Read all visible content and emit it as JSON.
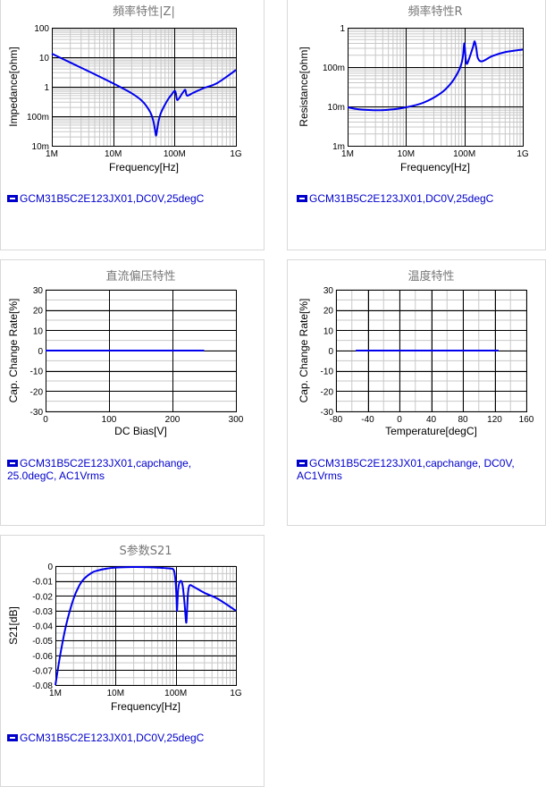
{
  "chart_data": [
    {
      "id": "impedance",
      "type": "line",
      "title": "頻率特性|Z|",
      "xlabel": "Frequency[Hz]",
      "ylabel": "Impedance[ohm]",
      "xscale": "log",
      "yscale": "log",
      "xlim": [
        1000000,
        1000000000
      ],
      "ylim": [
        0.01,
        100
      ],
      "xticks": [
        {
          "v": 1000000,
          "label": "1M"
        },
        {
          "v": 10000000,
          "label": "10M"
        },
        {
          "v": 100000000,
          "label": "100M"
        },
        {
          "v": 1000000000,
          "label": "1G"
        }
      ],
      "yticks": [
        {
          "v": 0.01,
          "label": "10m"
        },
        {
          "v": 0.1,
          "label": "100m"
        },
        {
          "v": 1,
          "label": "1"
        },
        {
          "v": 10,
          "label": "10"
        },
        {
          "v": 100,
          "label": "100"
        }
      ],
      "grid": true,
      "series": [
        {
          "name": "GCM31B5C2E123JX01,DC0V,25degC",
          "color": "#0000ee",
          "x": [
            1000000,
            2000000,
            5000000,
            10000000,
            20000000,
            30000000,
            40000000,
            45000000,
            48000000,
            50000000,
            52000000,
            55000000,
            60000000,
            70000000,
            80000000,
            90000000,
            100000000,
            105000000,
            110000000,
            120000000,
            130000000,
            140000000,
            150000000,
            160000000,
            200000000,
            300000000,
            500000000,
            1000000000
          ],
          "y": [
            13.2,
            6.6,
            2.65,
            1.3,
            0.6,
            0.32,
            0.14,
            0.07,
            0.035,
            0.022,
            0.035,
            0.07,
            0.13,
            0.25,
            0.4,
            0.55,
            0.72,
            0.6,
            0.36,
            0.42,
            0.55,
            0.68,
            0.78,
            0.5,
            0.62,
            0.9,
            1.35,
            3.7
          ]
        }
      ],
      "legend": [
        "GCM31B5C2E123JX01,DC0V,25degC"
      ]
    },
    {
      "id": "resistance",
      "type": "line",
      "title": "頻率特性R",
      "xlabel": "Frequency[Hz]",
      "ylabel": "Resistance[ohm]",
      "xscale": "log",
      "yscale": "log",
      "xlim": [
        1000000,
        1000000000
      ],
      "ylim": [
        0.001,
        1
      ],
      "xticks": [
        {
          "v": 1000000,
          "label": "1M"
        },
        {
          "v": 10000000,
          "label": "10M"
        },
        {
          "v": 100000000,
          "label": "100M"
        },
        {
          "v": 1000000000,
          "label": "1G"
        }
      ],
      "yticks": [
        {
          "v": 0.001,
          "label": "1m"
        },
        {
          "v": 0.01,
          "label": "10m"
        },
        {
          "v": 0.1,
          "label": "100m"
        },
        {
          "v": 1,
          "label": "1"
        }
      ],
      "grid": true,
      "series": [
        {
          "name": "GCM31B5C2E123JX01,DC0V,25degC",
          "color": "#0000ee",
          "x": [
            1000000,
            1500000,
            2000000,
            3000000,
            5000000,
            10000000,
            20000000,
            40000000,
            60000000,
            80000000,
            90000000,
            95000000,
            100000000,
            105000000,
            110000000,
            120000000,
            140000000,
            150000000,
            160000000,
            170000000,
            200000000,
            300000000,
            500000000,
            1000000000
          ],
          "y": [
            0.0095,
            0.0085,
            0.0082,
            0.008,
            0.0082,
            0.0095,
            0.0125,
            0.022,
            0.04,
            0.08,
            0.13,
            0.2,
            0.4,
            0.17,
            0.12,
            0.16,
            0.32,
            0.45,
            0.3,
            0.17,
            0.14,
            0.19,
            0.24,
            0.28
          ]
        }
      ],
      "legend": [
        "GCM31B5C2E123JX01,DC0V,25degC"
      ]
    },
    {
      "id": "dcbias",
      "type": "line",
      "title": "直流偏压特性",
      "xlabel": "DC Bias[V]",
      "ylabel": "Cap. Change Rate[%]",
      "xscale": "linear",
      "yscale": "linear",
      "xlim": [
        0,
        300
      ],
      "ylim": [
        -30,
        30
      ],
      "xticks": [
        {
          "v": 0,
          "label": "0"
        },
        {
          "v": 100,
          "label": "100"
        },
        {
          "v": 200,
          "label": "200"
        },
        {
          "v": 300,
          "label": "300"
        }
      ],
      "yticks": [
        {
          "v": -30,
          "label": "-30"
        },
        {
          "v": -20,
          "label": "-20"
        },
        {
          "v": -10,
          "label": "-10"
        },
        {
          "v": 0,
          "label": "0"
        },
        {
          "v": 10,
          "label": "10"
        },
        {
          "v": 20,
          "label": "20"
        },
        {
          "v": 30,
          "label": "30"
        }
      ],
      "minor_y": 5,
      "grid": true,
      "series": [
        {
          "name": "GCM31B5C2E123JX01,capchange, 25.0degC, AC1Vrms",
          "color": "#0000ee",
          "x": [
            0,
            250
          ],
          "y": [
            0,
            0
          ]
        }
      ],
      "legend": [
        "GCM31B5C2E123JX01,capchange,",
        "25.0degC, AC1Vrms"
      ]
    },
    {
      "id": "temperature",
      "type": "line",
      "title": "温度特性",
      "xlabel": "Temperature[degC]",
      "ylabel": "Cap. Change Rate[%]",
      "xscale": "linear",
      "yscale": "linear",
      "xlim": [
        -80,
        160
      ],
      "ylim": [
        -30,
        30
      ],
      "xticks": [
        {
          "v": -80,
          "label": "-80"
        },
        {
          "v": -40,
          "label": "-40"
        },
        {
          "v": 0,
          "label": "0"
        },
        {
          "v": 40,
          "label": "40"
        },
        {
          "v": 80,
          "label": "80"
        },
        {
          "v": 120,
          "label": "120"
        },
        {
          "v": 160,
          "label": "160"
        }
      ],
      "yticks": [
        {
          "v": -30,
          "label": "-30"
        },
        {
          "v": -20,
          "label": "-20"
        },
        {
          "v": -10,
          "label": "-10"
        },
        {
          "v": 0,
          "label": "0"
        },
        {
          "v": 10,
          "label": "10"
        },
        {
          "v": 20,
          "label": "20"
        },
        {
          "v": 30,
          "label": "30"
        }
      ],
      "minor_x": 20,
      "minor_y": 5,
      "grid": true,
      "series": [
        {
          "name": "GCM31B5C2E123JX01,capchange, DC0V, AC1Vrms",
          "color": "#0000ee",
          "x": [
            -55,
            125
          ],
          "y": [
            0,
            0
          ]
        }
      ],
      "legend": [
        "GCM31B5C2E123JX01,capchange, DC0V,",
        "AC1Vrms"
      ]
    },
    {
      "id": "s21",
      "type": "line",
      "title": "S参数S21",
      "xlabel": "Frequency[Hz]",
      "ylabel": "S21[dB]",
      "xscale": "log",
      "yscale": "linear",
      "xlim": [
        1000000,
        1000000000
      ],
      "ylim": [
        -0.08,
        0
      ],
      "xticks": [
        {
          "v": 1000000,
          "label": "1M"
        },
        {
          "v": 10000000,
          "label": "10M"
        },
        {
          "v": 100000000,
          "label": "100M"
        },
        {
          "v": 1000000000,
          "label": "1G"
        }
      ],
      "yticks": [
        {
          "v": -0.08,
          "label": "-0.08"
        },
        {
          "v": -0.07,
          "label": "-0.07"
        },
        {
          "v": -0.06,
          "label": "-0.06"
        },
        {
          "v": -0.05,
          "label": "-0.05"
        },
        {
          "v": -0.04,
          "label": "-0.04"
        },
        {
          "v": -0.03,
          "label": "-0.03"
        },
        {
          "v": -0.02,
          "label": "-0.02"
        },
        {
          "v": -0.01,
          "label": "-0.01"
        },
        {
          "v": 0,
          "label": "0"
        }
      ],
      "minor_y": 0.005,
      "grid": true,
      "series": [
        {
          "name": "GCM31B5C2E123JX01,DC0V,25degC",
          "color": "#0000ee",
          "x": [
            1000000,
            1200000,
            1500000,
            2000000,
            2500000,
            3000000,
            4000000,
            5000000,
            7000000,
            10000000,
            20000000,
            40000000,
            60000000,
            80000000,
            90000000,
            95000000,
            100000000,
            103000000,
            105000000,
            110000000,
            120000000,
            130000000,
            140000000,
            145000000,
            150000000,
            155000000,
            160000000,
            170000000,
            200000000,
            300000000,
            500000000,
            1000000000
          ],
          "y": [
            -0.08,
            -0.06,
            -0.04,
            -0.022,
            -0.013,
            -0.0085,
            -0.0045,
            -0.003,
            -0.0017,
            -0.001,
            -0.0006,
            -0.0008,
            -0.0012,
            -0.0016,
            -0.002,
            -0.004,
            -0.012,
            -0.022,
            -0.03,
            -0.015,
            -0.01,
            -0.013,
            -0.025,
            -0.033,
            -0.038,
            -0.028,
            -0.018,
            -0.013,
            -0.014,
            -0.018,
            -0.022,
            -0.03
          ]
        }
      ],
      "legend": [
        "GCM31B5C2E123JX01,DC0V,25degC"
      ]
    }
  ]
}
